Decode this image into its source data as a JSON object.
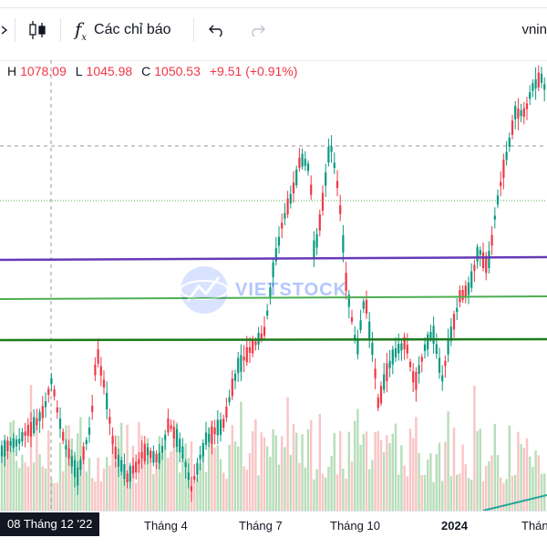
{
  "toolbar": {
    "indicators_label": "Các chỉ báo",
    "symbol_label": "vnin"
  },
  "ohlc": {
    "h_key": "H",
    "h": "1078.09",
    "l_key": "L",
    "l": "1045.98",
    "c_key": "C",
    "c": "1050.53",
    "change": "+9.51 (+0.91%)"
  },
  "watermark": {
    "brand": "VIETSTOCK"
  },
  "time_axis": {
    "labels": [
      "Tháng 4",
      "Tháng 7",
      "Tháng 10",
      "2024",
      "Tháng"
    ],
    "crosshair_date": "08 Tháng 12 '22"
  },
  "colors": {
    "up": "#089981",
    "down": "#f23645",
    "purple_line": "#673ab7",
    "green_line": "#4caf50",
    "dark_green_line": "#1b7a1b"
  }
}
